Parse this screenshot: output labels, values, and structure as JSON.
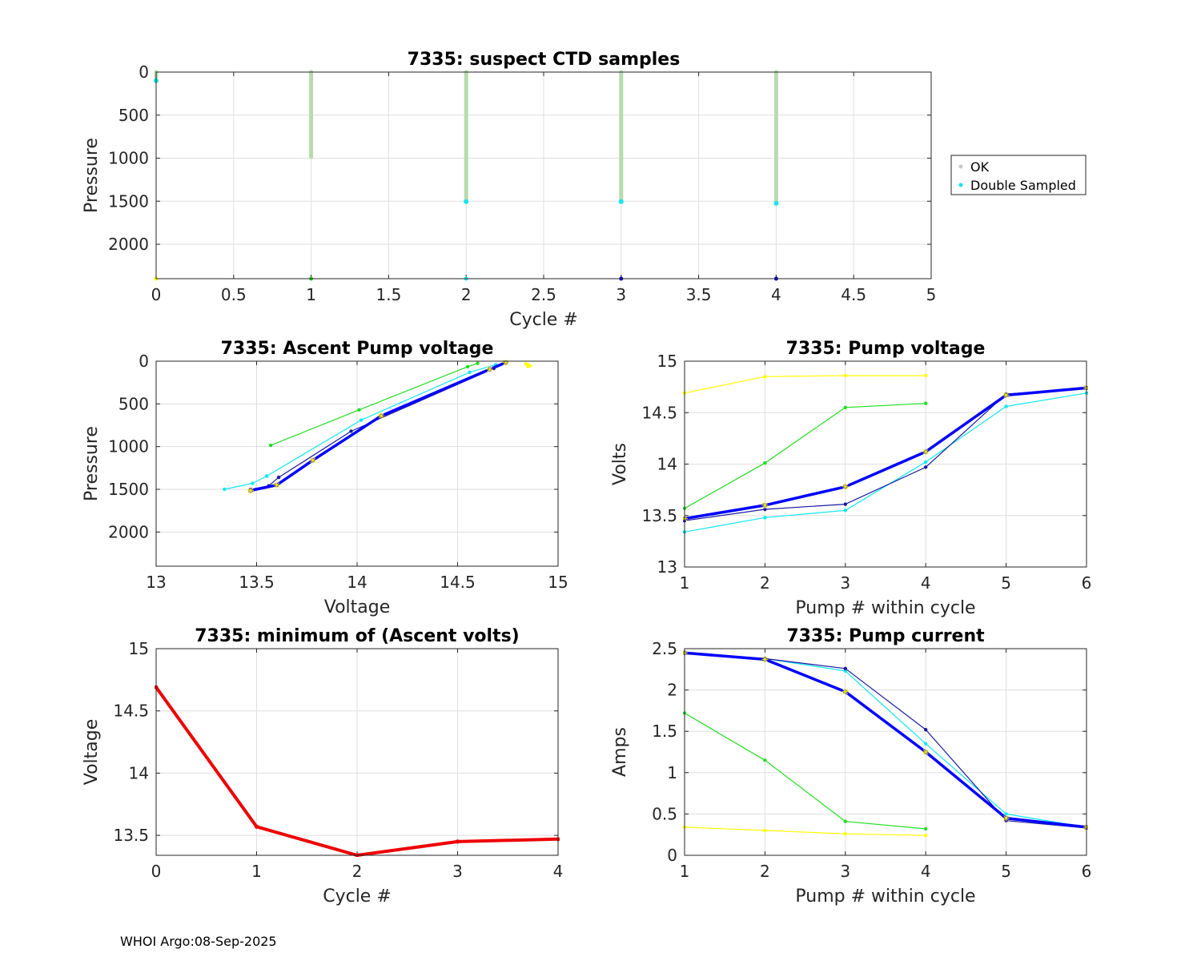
{
  "footer": "WHOI Argo:08-Sep-2025",
  "chart_data": [
    {
      "id": "suspect",
      "type": "scatter",
      "title": "7335: suspect CTD samples",
      "xlabel": "Cycle #",
      "ylabel": "Pressure",
      "xlim": [
        0,
        5
      ],
      "ylim": [
        0,
        2400
      ],
      "y_reversed": true,
      "xticks": [
        0,
        0.5,
        1,
        1.5,
        2,
        2.5,
        3,
        3.5,
        4,
        4.5,
        5
      ],
      "yticks": [
        0,
        500,
        1000,
        1500,
        2000
      ],
      "grid": true,
      "legend": {
        "placement": "outside-right",
        "entries": [
          "OK",
          "Double Sampled"
        ]
      },
      "colors": {
        "ok": "#b6dcae",
        "double": "#12e6f2"
      },
      "ok_profiles": [
        {
          "cycle": 0,
          "pmin": 0,
          "pmax": 60
        },
        {
          "cycle": 1,
          "pmin": 0,
          "pmax": 985
        },
        {
          "cycle": 2,
          "pmin": 0,
          "pmax": 1500
        },
        {
          "cycle": 3,
          "pmin": 0,
          "pmax": 1500
        },
        {
          "cycle": 4,
          "pmin": 0,
          "pmax": 1515
        }
      ],
      "double_sampled": [
        {
          "cycle": 0,
          "pressure": 100
        },
        {
          "cycle": 2,
          "pressure": 1505
        },
        {
          "cycle": 3,
          "pressure": 1505
        },
        {
          "cycle": 4,
          "pressure": 1525
        }
      ],
      "bottom_markers": [
        {
          "cycle": 0,
          "color": "#ffff00"
        },
        {
          "cycle": 1,
          "color": "#22cc22"
        },
        {
          "cycle": 2,
          "color": "#12e6f2"
        },
        {
          "cycle": 3,
          "color": "#0000cc"
        },
        {
          "cycle": 4,
          "color": "#0000cc"
        }
      ]
    },
    {
      "id": "ascent",
      "type": "line",
      "title": "7335: Ascent Pump voltage",
      "xlabel": "Voltage",
      "ylabel": "Pressure",
      "xlim": [
        13,
        15
      ],
      "ylim": [
        0,
        2400
      ],
      "y_reversed": true,
      "xticks": [
        13,
        13.5,
        14,
        14.5,
        15
      ],
      "yticks": [
        0,
        500,
        1000,
        1500,
        2000
      ],
      "grid": true,
      "series": [
        {
          "color": "#ffff00",
          "width": 1.2,
          "x": [
            14.84,
            14.85,
            14.86,
            14.85
          ],
          "y": [
            30,
            40,
            55,
            60
          ]
        },
        {
          "color": "#22dd22",
          "width": 1.2,
          "x": [
            13.57,
            14.01,
            14.55,
            14.6
          ],
          "y": [
            985,
            570,
            65,
            25
          ]
        },
        {
          "color": "#12e6f2",
          "width": 1.2,
          "x": [
            13.34,
            13.48,
            13.55,
            14.02,
            14.56,
            14.69
          ],
          "y": [
            1500,
            1430,
            1345,
            690,
            130,
            40
          ]
        },
        {
          "color": "#1a1aa0",
          "width": 1.2,
          "x": [
            13.47,
            13.56,
            13.61,
            13.97,
            14.68,
            14.74
          ],
          "y": [
            1500,
            1460,
            1360,
            820,
            85,
            20
          ]
        },
        {
          "color": "#0000ff",
          "width": 3.5,
          "x": [
            13.47,
            13.6,
            13.78,
            14.12,
            14.66,
            14.74
          ],
          "y": [
            1515,
            1450,
            1160,
            640,
            95,
            15
          ]
        }
      ]
    },
    {
      "id": "pumpvolt",
      "type": "line",
      "title": "7335: Pump voltage",
      "xlabel": "Pump # within cycle",
      "ylabel": "Volts",
      "xlim": [
        1,
        6
      ],
      "ylim": [
        13,
        15
      ],
      "y_reversed": false,
      "xticks": [
        1,
        2,
        3,
        4,
        5,
        6
      ],
      "yticks": [
        13,
        13.5,
        14,
        14.5,
        15
      ],
      "grid": true,
      "series": [
        {
          "color": "#ffff00",
          "width": 1.2,
          "x": [
            1,
            2,
            3,
            4
          ],
          "y": [
            14.69,
            14.85,
            14.86,
            14.86
          ]
        },
        {
          "color": "#22dd22",
          "width": 1.2,
          "x": [
            1,
            2,
            3,
            4
          ],
          "y": [
            13.57,
            14.01,
            14.55,
            14.59
          ]
        },
        {
          "color": "#12e6f2",
          "width": 1.2,
          "x": [
            1,
            2,
            3,
            4,
            5,
            6
          ],
          "y": [
            13.34,
            13.48,
            13.55,
            14.02,
            14.56,
            14.69
          ]
        },
        {
          "color": "#1a1aa0",
          "width": 1.2,
          "x": [
            1,
            2,
            3,
            4,
            5,
            6
          ],
          "y": [
            13.45,
            13.56,
            13.61,
            13.97,
            14.68,
            14.74
          ]
        },
        {
          "color": "#0000ff",
          "width": 3.5,
          "x": [
            1,
            2,
            3,
            4,
            5,
            6
          ],
          "y": [
            13.47,
            13.6,
            13.78,
            14.12,
            14.67,
            14.74
          ]
        }
      ]
    },
    {
      "id": "minvolt",
      "type": "line",
      "title": "7335: minimum of (Ascent volts)",
      "xlabel": "Cycle #",
      "ylabel": "Voltage",
      "xlim": [
        0,
        4
      ],
      "ylim": [
        13.34,
        15
      ],
      "y_reversed": false,
      "xticks": [
        0,
        1,
        2,
        3,
        4
      ],
      "yticks": [
        13.5,
        14,
        14.5,
        15
      ],
      "grid": true,
      "series": [
        {
          "color": "#ee0000",
          "width": 4,
          "x": [
            0,
            1,
            2,
            3,
            4
          ],
          "y": [
            14.69,
            13.57,
            13.34,
            13.45,
            13.47
          ]
        }
      ]
    },
    {
      "id": "pumpcurrent",
      "type": "line",
      "title": "7335: Pump current",
      "xlabel": "Pump # within cycle",
      "ylabel": "Amps",
      "xlim": [
        1,
        6
      ],
      "ylim": [
        0,
        2.5
      ],
      "y_reversed": false,
      "xticks": [
        1,
        2,
        3,
        4,
        5,
        6
      ],
      "yticks": [
        0,
        0.5,
        1,
        1.5,
        2,
        2.5
      ],
      "grid": true,
      "series": [
        {
          "color": "#ffff00",
          "width": 1.2,
          "x": [
            1,
            2,
            3,
            4
          ],
          "y": [
            0.34,
            0.3,
            0.26,
            0.24
          ]
        },
        {
          "color": "#22dd22",
          "width": 1.2,
          "x": [
            1,
            2,
            3,
            4
          ],
          "y": [
            1.72,
            1.15,
            0.41,
            0.32
          ]
        },
        {
          "color": "#12e6f2",
          "width": 1.2,
          "x": [
            1,
            2,
            3,
            4,
            5,
            6
          ],
          "y": [
            2.45,
            2.38,
            2.23,
            1.35,
            0.5,
            0.34
          ]
        },
        {
          "color": "#1a1aa0",
          "width": 1.2,
          "x": [
            1,
            2,
            3,
            4,
            5,
            6
          ],
          "y": [
            2.45,
            2.38,
            2.26,
            1.52,
            0.42,
            0.33
          ]
        },
        {
          "color": "#0000ff",
          "width": 3.5,
          "x": [
            1,
            2,
            3,
            4,
            5,
            6
          ],
          "y": [
            2.45,
            2.37,
            1.98,
            1.25,
            0.45,
            0.34
          ]
        }
      ]
    }
  ]
}
